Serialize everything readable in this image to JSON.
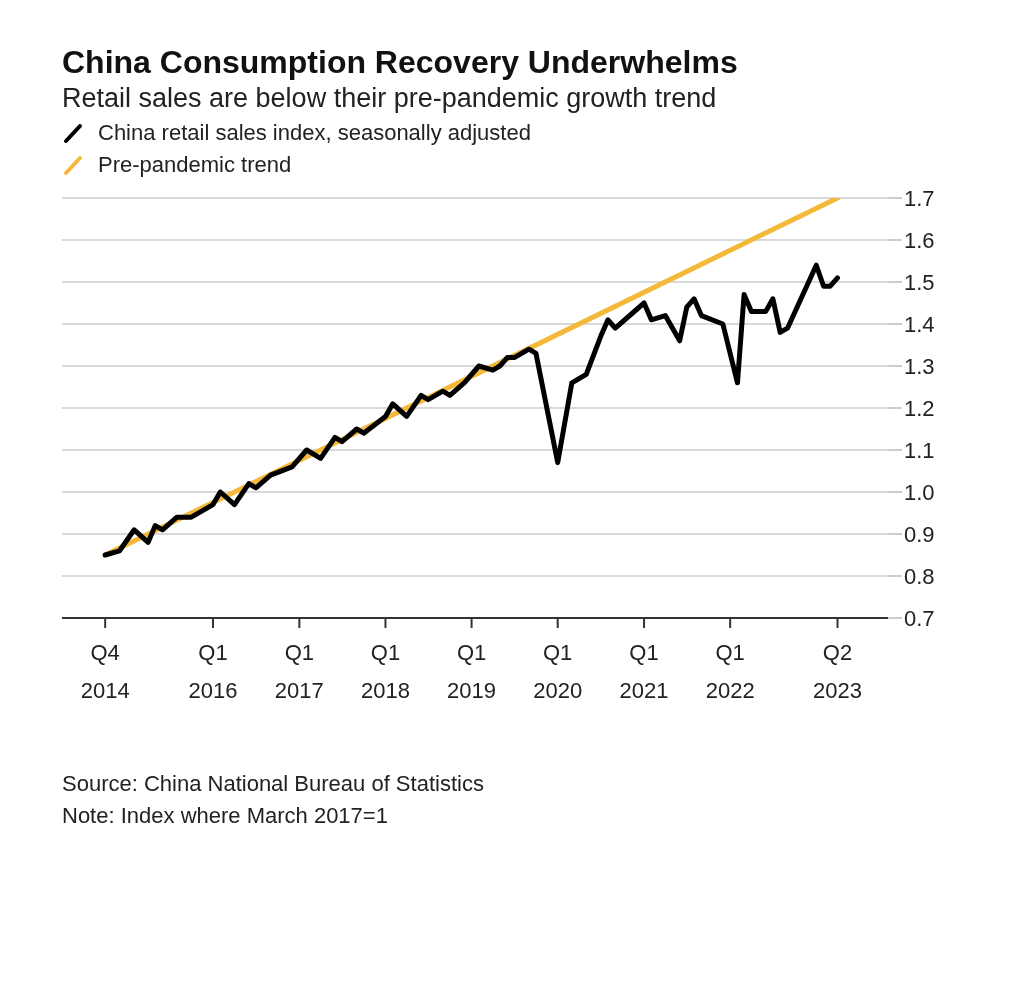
{
  "chart_data": {
    "type": "line",
    "title": "China Consumption Recovery Underwhelms",
    "subtitle": "Retail sales are below their pre-pandemic growth trend",
    "series": [
      {
        "name": "China retail sales index, seasonally adjusted",
        "color": "#000000",
        "x": [
          "2014-10",
          "2014-12",
          "2015-02",
          "2015-04",
          "2015-05",
          "2015-06",
          "2015-08",
          "2015-10",
          "2016-01",
          "2016-02",
          "2016-04",
          "2016-06",
          "2016-07",
          "2016-09",
          "2016-12",
          "2017-02",
          "2017-04",
          "2017-06",
          "2017-07",
          "2017-09",
          "2017-10",
          "2018-01",
          "2018-02",
          "2018-04",
          "2018-06",
          "2018-07",
          "2018-09",
          "2018-10",
          "2018-12",
          "2019-02",
          "2019-04",
          "2019-05",
          "2019-06",
          "2019-07",
          "2019-09",
          "2019-10",
          "2020-01",
          "2020-03",
          "2020-05",
          "2020-07",
          "2020-08",
          "2020-09",
          "2021-01",
          "2021-02",
          "2021-04",
          "2021-06",
          "2021-07",
          "2021-08",
          "2021-09",
          "2021-12",
          "2022-02",
          "2022-03",
          "2022-04",
          "2022-06",
          "2022-07",
          "2022-08",
          "2022-09",
          "2023-01",
          "2023-02",
          "2023-03",
          "2023-04"
        ],
        "values": [
          0.85,
          0.86,
          0.91,
          0.88,
          0.92,
          0.91,
          0.94,
          0.94,
          0.97,
          1.0,
          0.97,
          1.02,
          1.01,
          1.04,
          1.06,
          1.1,
          1.08,
          1.13,
          1.12,
          1.15,
          1.14,
          1.18,
          1.21,
          1.18,
          1.23,
          1.22,
          1.24,
          1.23,
          1.26,
          1.3,
          1.29,
          1.3,
          1.32,
          1.32,
          1.34,
          1.33,
          1.07,
          1.26,
          1.28,
          1.37,
          1.41,
          1.39,
          1.45,
          1.41,
          1.42,
          1.36,
          1.44,
          1.46,
          1.42,
          1.4,
          1.26,
          1.47,
          1.43,
          1.43,
          1.46,
          1.38,
          1.39,
          1.54,
          1.49,
          1.49,
          1.51
        ]
      },
      {
        "name": "Pre-pandemic trend",
        "color": "#f4b93a",
        "x": [
          "2014-10",
          "2023-04"
        ],
        "values": [
          0.85,
          1.7
        ]
      }
    ],
    "xlim": [
      "2014-04",
      "2023-11"
    ],
    "xticks": [
      {
        "value": "2014-10",
        "label": "Q4 2014"
      },
      {
        "value": "2016-01",
        "label": "Q1 2016"
      },
      {
        "value": "2017-01",
        "label": "Q1 2017"
      },
      {
        "value": "2018-01",
        "label": "Q1 2018"
      },
      {
        "value": "2019-01",
        "label": "Q1 2019"
      },
      {
        "value": "2020-01",
        "label": "Q1 2020"
      },
      {
        "value": "2021-01",
        "label": "Q1 2021"
      },
      {
        "value": "2022-01",
        "label": "Q1 2022"
      },
      {
        "value": "2023-04",
        "label": "Q2 2023"
      }
    ],
    "ylim": [
      0.7,
      1.7
    ],
    "yticks": [
      {
        "value": 0.7,
        "label": "0.7"
      },
      {
        "value": 0.8,
        "label": "0.8"
      },
      {
        "value": 0.9,
        "label": "0.9"
      },
      {
        "value": 1.0,
        "label": "1.0"
      },
      {
        "value": 1.1,
        "label": "1.1"
      },
      {
        "value": 1.2,
        "label": "1.2"
      },
      {
        "value": 1.3,
        "label": "1.3"
      },
      {
        "value": 1.4,
        "label": "1.4"
      },
      {
        "value": 1.5,
        "label": "1.5"
      },
      {
        "value": 1.6,
        "label": "1.6"
      },
      {
        "value": 1.7,
        "label": "1.7"
      }
    ],
    "grid": "y",
    "legend": "top left",
    "marker": "none",
    "line_style": "solid",
    "annotations": [
      "Source: China National Bureau of Statistics",
      "Note: Index where March 2017=1"
    ]
  }
}
